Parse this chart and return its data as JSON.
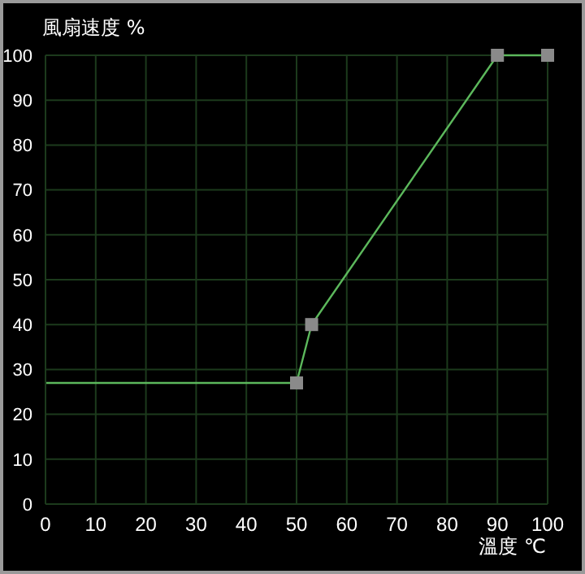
{
  "chart_data": {
    "type": "line",
    "xlabel": "溫度 ℃",
    "ylabel": "風扇速度 %",
    "xlim": [
      0,
      100
    ],
    "xticks": [
      0,
      10,
      20,
      30,
      40,
      50,
      60,
      70,
      80,
      90,
      100
    ],
    "ylim": [
      0,
      100
    ],
    "yticks": [
      0,
      10,
      20,
      30,
      40,
      50,
      60,
      70,
      80,
      90,
      100
    ],
    "grid": true,
    "line_style": "solid",
    "series": [
      {
        "color": "#5cb85c",
        "x": [
          0,
          50
        ],
        "values": [
          27,
          27
        ]
      },
      {
        "color": "#5cb85c",
        "x": [
          50,
          53,
          90,
          100
        ],
        "values": [
          27,
          40,
          100,
          100
        ],
        "marker": "square"
      }
    ]
  }
}
